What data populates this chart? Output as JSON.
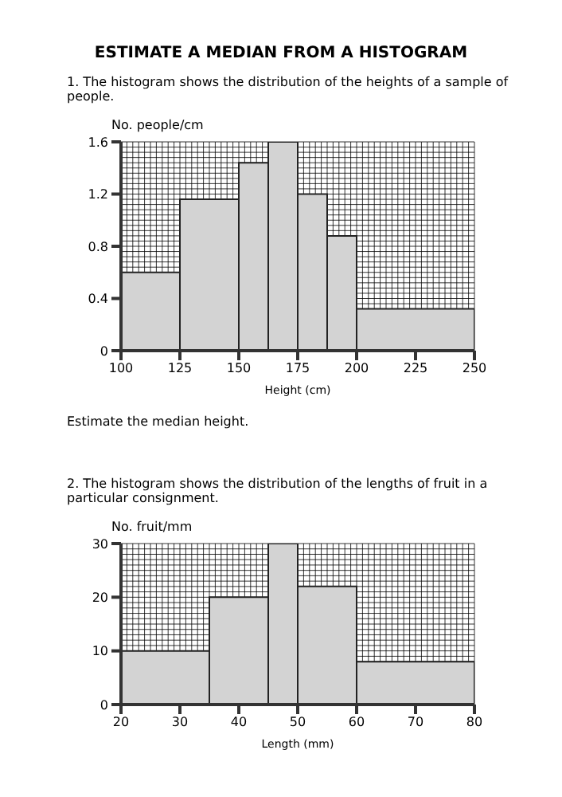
{
  "chart_data": [
    {
      "type": "histogram",
      "title": "ESTIMATE A MEDIAN FROM A HISTOGRAM",
      "subtitle": "1. The histogram shows the distribution of the heights of a sample of people.",
      "xlabel": "Height (cm)",
      "ylabel": "No. people/cm",
      "bins": [
        100,
        125,
        150,
        162.5,
        175,
        187.5,
        200,
        250
      ],
      "values": [
        0.6,
        1.16,
        1.44,
        1.6,
        1.2,
        0.88,
        0.32
      ],
      "color": "#d3d3d3",
      "xlim": [
        100,
        250
      ],
      "xticks": [
        100,
        125,
        150,
        175,
        200,
        225,
        250
      ],
      "ylim": [
        0,
        1.6
      ],
      "yticks": [
        0,
        0.4,
        0.8,
        1.2,
        1.6
      ],
      "grid": true,
      "annotations": [
        "Estimate the median height."
      ]
    },
    {
      "type": "histogram",
      "subtitle": "2. The histogram shows the distribution of the lengths of fruit in a particular consignment.",
      "xlabel": "Length (mm)",
      "ylabel": "No. fruit/mm",
      "bins": [
        20,
        35,
        45,
        50,
        60,
        80
      ],
      "values": [
        10,
        20,
        30,
        22,
        8
      ],
      "color": "#d3d3d3",
      "xlim": [
        20,
        80
      ],
      "xticks": [
        20,
        30,
        40,
        50,
        60,
        70,
        80
      ],
      "ylim": [
        0,
        30
      ],
      "yticks": [
        0,
        10,
        20,
        30
      ],
      "grid": true
    }
  ]
}
